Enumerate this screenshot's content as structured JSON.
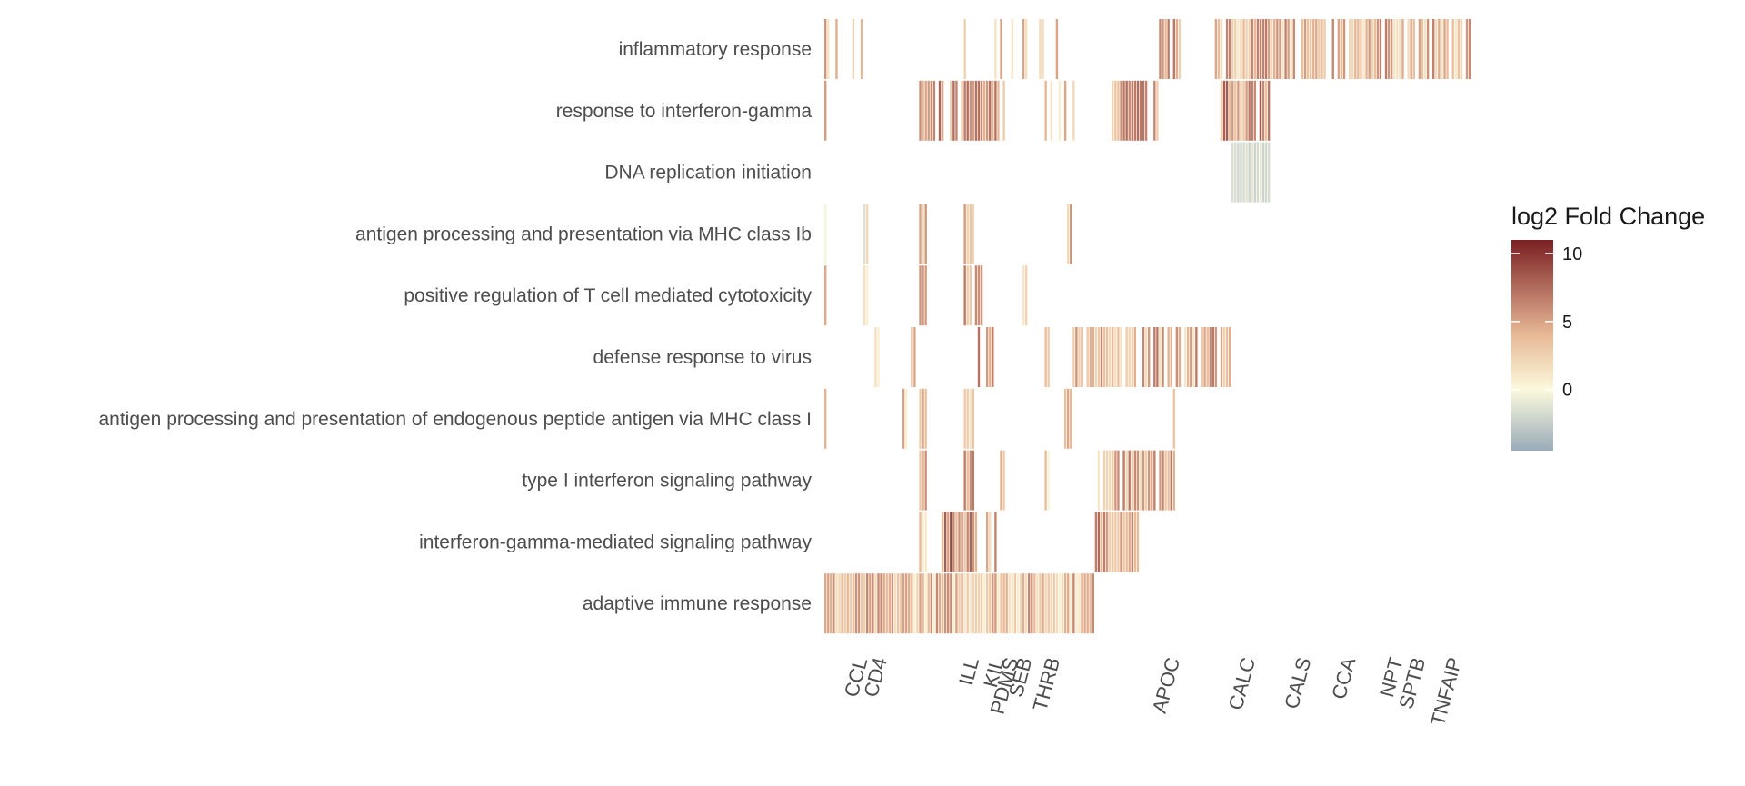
{
  "chart_data": {
    "type": "heatmap",
    "title": "",
    "xlabel": "",
    "ylabel": "",
    "rows": [
      "inflammatory response",
      "response to interferon-gamma",
      "DNA replication initiation",
      "antigen processing and presentation via MHC class Ib",
      "positive regulation of T cell mediated cytotoxicity",
      "defense response to virus",
      "antigen processing and presentation of endogenous peptide antigen via MHC class I",
      "type I interferon signaling pathway",
      "interferon-gamma-mediated signaling pathway",
      "adaptive immune response"
    ],
    "n_genes": 232,
    "visible_gene_labels": [
      {
        "label": "CALC",
        "index": 154
      },
      {
        "label": "APOC",
        "index": 127
      },
      {
        "label": "PDMS",
        "index": 69
      },
      {
        "label": "SEB",
        "index": 74
      },
      {
        "label": "THRB",
        "index": 84
      },
      {
        "label": "KIL",
        "index": 64
      },
      {
        "label": "ILL",
        "index": 55
      },
      {
        "label": "CCL",
        "index": 15
      },
      {
        "label": "CD4",
        "index": 22
      },
      {
        "label": "CALS",
        "index": 174
      },
      {
        "label": "CCA",
        "index": 190
      },
      {
        "label": "NPT",
        "index": 207
      },
      {
        "label": "SPTB",
        "index": 215
      },
      {
        "label": "TNFAIP",
        "index": 228
      }
    ],
    "column_ranges": [
      {
        "row": "inflammatory response",
        "segments": [
          [
            0,
            17
          ],
          [
            50,
            91
          ],
          [
            119,
            129
          ],
          [
            140,
            232
          ]
        ],
        "density": [
          0.45,
          0.3,
          0.45,
          0.9
        ],
        "mean_log2fc": [
          3.0,
          2.5,
          5.0,
          4.0
        ]
      },
      {
        "row": "response to interferon-gamma",
        "segments": [
          [
            0,
            1
          ],
          [
            34,
            65
          ],
          [
            78,
            98
          ],
          [
            103,
            120
          ],
          [
            140,
            160
          ]
        ],
        "density": [
          1.0,
          0.85,
          0.2,
          0.85,
          0.9
        ],
        "mean_log2fc": [
          2.5,
          5.0,
          3.0,
          5.0,
          5.5
        ]
      },
      {
        "row": "DNA replication initiation",
        "segments": [
          [
            146,
            160
          ]
        ],
        "density": [
          1.0
        ],
        "mean_log2fc": [
          -1.5
        ]
      },
      {
        "row": "antigen processing and presentation via MHC class Ib",
        "segments": [
          [
            0,
            1
          ],
          [
            14,
            16
          ],
          [
            34,
            37
          ],
          [
            50,
            54
          ],
          [
            87,
            89
          ]
        ],
        "density": [
          1.0,
          1.0,
          1.0,
          1.0,
          1.0
        ],
        "mean_log2fc": [
          2.5,
          0.5,
          3.5,
          3.5,
          3.5
        ]
      },
      {
        "row": "positive regulation of T cell mediated cytotoxicity",
        "segments": [
          [
            0,
            1
          ],
          [
            14,
            16
          ],
          [
            34,
            37
          ],
          [
            50,
            58
          ],
          [
            71,
            73
          ]
        ],
        "density": [
          1.0,
          1.0,
          1.0,
          0.8,
          1.0
        ],
        "mean_log2fc": [
          2.5,
          0.5,
          3.5,
          4.0,
          4.0
        ]
      },
      {
        "row": "defense response to virus",
        "segments": [
          [
            18,
            20
          ],
          [
            31,
            33
          ],
          [
            55,
            61
          ],
          [
            79,
            81
          ],
          [
            89,
            146
          ]
        ],
        "density": [
          1.0,
          1.0,
          0.7,
          1.0,
          0.75
        ],
        "mean_log2fc": [
          3.5,
          3.0,
          5.0,
          3.5,
          4.0
        ]
      },
      {
        "row": "antigen processing and presentation of endogenous peptide antigen via MHC class I",
        "segments": [
          [
            0,
            1
          ],
          [
            28,
            30
          ],
          [
            34,
            37
          ],
          [
            50,
            54
          ],
          [
            86,
            89
          ],
          [
            125,
            126
          ]
        ],
        "density": [
          1.0,
          1.0,
          1.0,
          1.0,
          1.0,
          1.0
        ],
        "mean_log2fc": [
          2.5,
          3.0,
          4.0,
          4.0,
          4.0,
          3.0
        ]
      },
      {
        "row": "type I interferon signaling pathway",
        "segments": [
          [
            34,
            37
          ],
          [
            50,
            54
          ],
          [
            63,
            65
          ],
          [
            79,
            81
          ],
          [
            98,
            126
          ]
        ],
        "density": [
          1.0,
          1.0,
          1.0,
          1.0,
          0.8
        ],
        "mean_log2fc": [
          3.5,
          4.0,
          3.5,
          3.0,
          4.0
        ]
      },
      {
        "row": "interferon-gamma-mediated signaling pathway",
        "segments": [
          [
            34,
            37
          ],
          [
            42,
            55
          ],
          [
            58,
            65
          ],
          [
            97,
            113
          ]
        ],
        "density": [
          1.0,
          1.0,
          0.6,
          1.0
        ],
        "mean_log2fc": [
          3.0,
          6.0,
          4.0,
          5.5
        ]
      },
      {
        "row": "adaptive immune response",
        "segments": [
          [
            0,
            97
          ]
        ],
        "density": [
          1.0
        ],
        "mean_log2fc": [
          3.5
        ]
      }
    ],
    "color_scale": {
      "legend_title": "log2 Fold Change",
      "min": -4.5,
      "max": 11,
      "ticks": [
        0,
        5,
        10
      ],
      "stops": [
        {
          "value": -4.5,
          "color": "#9aacba"
        },
        {
          "value": 0,
          "color": "#fbf9dc"
        },
        {
          "value": 4,
          "color": "#e8b996"
        },
        {
          "value": 11,
          "color": "#7a1f22"
        }
      ]
    },
    "grid": false,
    "legend_placement": "right"
  }
}
